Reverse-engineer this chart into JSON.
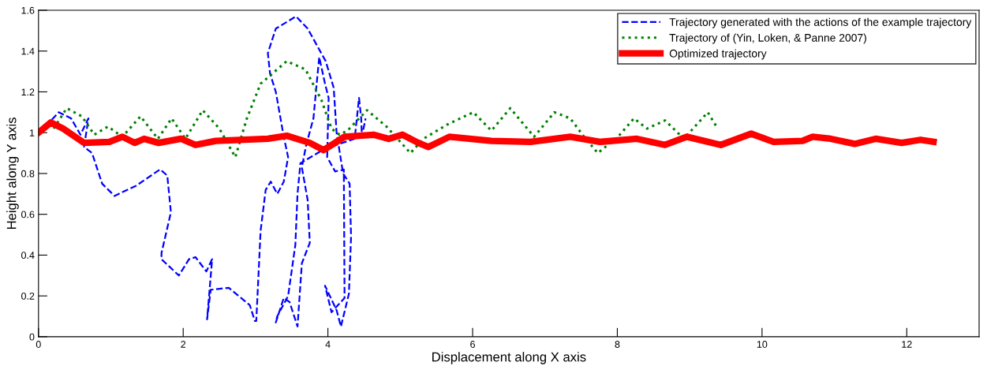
{
  "chart_data": {
    "type": "line",
    "xlabel": "Displacement along X axis",
    "ylabel": "Height along Y axis",
    "xlim": [
      0,
      13
    ],
    "xticks": [
      0,
      2,
      4,
      6,
      8,
      10,
      12
    ],
    "ylim": [
      0,
      1.6
    ],
    "yticks": [
      0,
      0.2,
      0.4,
      0.6,
      0.8,
      1,
      1.2,
      1.4,
      1.6
    ],
    "grid": false,
    "legend": "top right",
    "series": [
      {
        "name": "Trajectory generated with the actions of the example trajectory",
        "color": "#0000ff",
        "line_style": "dashed",
        "x": [
          0,
          0.15,
          0.28,
          0.45,
          0.58,
          0.69,
          0.63,
          0.74,
          0.88,
          1.05,
          1.35,
          1.68,
          1.78,
          1.83,
          1.7,
          1.7,
          1.94,
          2.08,
          2.17,
          2.32,
          2.4,
          2.33,
          2.38,
          2.63,
          2.92,
          2.99,
          3.01,
          3.07,
          3.14,
          3.21,
          3.3,
          3.39,
          3.45,
          3.39,
          3.28,
          3.2,
          3.17,
          3.28,
          3.56,
          3.72,
          3.97,
          4.08,
          4.12,
          4.21,
          4.3,
          4.32,
          4.29,
          4.18,
          4.12,
          3.96,
          4.05,
          4.23,
          4.22,
          4.1,
          3.99,
          4.01,
          3.96,
          3.88,
          3.85,
          3.8,
          3.7,
          3.64,
          3.72,
          3.75,
          3.64,
          3.58,
          3.47,
          3.39,
          3.28,
          3.3,
          3.45,
          3.55,
          3.58,
          3.62,
          3.95,
          4.37,
          4.43,
          4.46,
          4.47,
          4.52
        ],
        "values": [
          1.0,
          1.05,
          1.1,
          1.07,
          0.99,
          1.07,
          0.93,
          0.9,
          0.75,
          0.69,
          0.74,
          0.82,
          0.79,
          0.61,
          0.41,
          0.38,
          0.3,
          0.38,
          0.39,
          0.32,
          0.38,
          0.085,
          0.23,
          0.24,
          0.155,
          0.077,
          0.077,
          0.52,
          0.72,
          0.76,
          0.7,
          0.76,
          0.88,
          0.98,
          1.2,
          1.29,
          1.39,
          1.51,
          1.57,
          1.51,
          1.35,
          1.22,
          1.0,
          0.8,
          0.75,
          0.49,
          0.21,
          0.05,
          0.13,
          0.25,
          0.12,
          0.19,
          0.82,
          0.81,
          0.88,
          1.17,
          1.24,
          1.37,
          1.26,
          1.07,
          0.94,
          0.83,
          0.67,
          0.46,
          0.36,
          0.05,
          0.17,
          0.19,
          0.07,
          0.1,
          0.2,
          0.45,
          0.7,
          0.85,
          0.92,
          0.97,
          1.17,
          1.07,
          0.98,
          1.07
        ]
      },
      {
        "name": "Trajectory of (Yin, Loken, & Panne 2007)",
        "color": "#008000",
        "line_style": "dotted",
        "x": [
          0.21,
          0.39,
          0.6,
          0.77,
          0.96,
          1.16,
          1.41,
          1.65,
          1.84,
          2.03,
          2.27,
          2.5,
          2.72,
          2.88,
          3.07,
          3.43,
          3.69,
          3.91,
          4.05,
          4.16,
          4.27,
          4.54,
          4.81,
          5.14,
          5.32,
          5.65,
          6.01,
          6.26,
          6.52,
          6.85,
          7.13,
          7.35,
          7.54,
          7.73,
          8.01,
          8.23,
          8.41,
          8.66,
          8.92,
          9.25,
          9.37
        ],
        "values": [
          1.02,
          1.12,
          1.08,
          0.99,
          1.03,
          0.98,
          1.08,
          0.97,
          1.07,
          0.97,
          1.11,
          1.02,
          0.88,
          1.07,
          1.24,
          1.35,
          1.31,
          1.16,
          1.02,
          0.99,
          1.01,
          1.11,
          1.03,
          0.9,
          0.97,
          1.04,
          1.1,
          1.01,
          1.12,
          0.98,
          1.1,
          1.07,
          0.98,
          0.9,
          0.98,
          1.07,
          1.02,
          1.06,
          0.97,
          1.1,
          1.03
        ]
      },
      {
        "name": "Optimized trajectory",
        "color": "#ff0000",
        "line_style": "solid",
        "x": [
          0,
          0.17,
          0.34,
          0.63,
          0.98,
          1.16,
          1.33,
          1.46,
          1.66,
          1.97,
          2.17,
          2.45,
          3.17,
          3.43,
          3.75,
          3.94,
          4.23,
          4.63,
          4.84,
          5.03,
          5.25,
          5.39,
          5.68,
          6.26,
          6.8,
          7.35,
          7.76,
          8.27,
          8.66,
          8.96,
          9.43,
          9.85,
          10.16,
          10.56,
          10.7,
          10.95,
          11.28,
          11.57,
          11.93,
          12.19,
          12.37
        ],
        "values": [
          1.0,
          1.05,
          1.02,
          0.95,
          0.955,
          0.98,
          0.95,
          0.97,
          0.95,
          0.97,
          0.94,
          0.96,
          0.97,
          0.985,
          0.95,
          0.915,
          0.98,
          0.99,
          0.97,
          0.99,
          0.95,
          0.93,
          0.98,
          0.96,
          0.955,
          0.98,
          0.955,
          0.97,
          0.94,
          0.98,
          0.94,
          0.995,
          0.955,
          0.96,
          0.98,
          0.97,
          0.945,
          0.97,
          0.95,
          0.965,
          0.955
        ]
      }
    ]
  }
}
